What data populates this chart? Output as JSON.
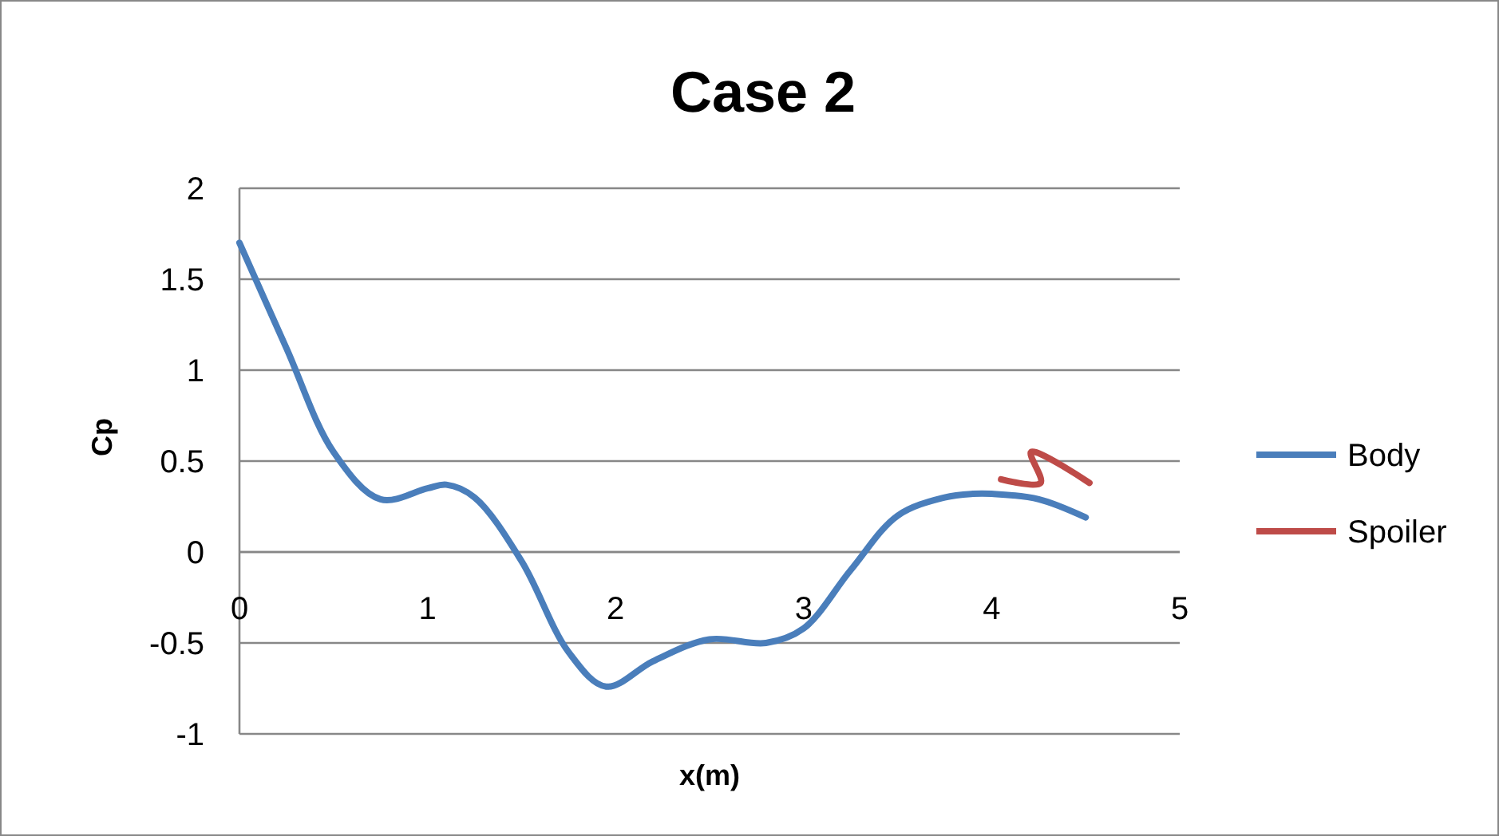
{
  "chart_data": {
    "type": "line",
    "title": "Case 2",
    "xlabel": "x(m)",
    "ylabel": "Cp",
    "xlim": [
      0,
      5
    ],
    "xticks": [
      0,
      1,
      2,
      3,
      4,
      5
    ],
    "ylim": [
      -1,
      2
    ],
    "yticks": [
      -1,
      -0.5,
      0,
      0.5,
      1,
      1.5,
      2
    ],
    "grid": "y",
    "legend": "right",
    "marker": "none",
    "line_style": "solid",
    "series": [
      {
        "name": "Body",
        "color": "#4a7ebb",
        "x": [
          0,
          0.25,
          0.5,
          0.75,
          1.0,
          1.1,
          1.25,
          1.5,
          1.75,
          1.95,
          2.2,
          2.5,
          2.8,
          3.0,
          3.25,
          3.5,
          3.75,
          3.9,
          4.0,
          4.25,
          4.5
        ],
        "values": [
          1.7,
          1.12,
          0.55,
          0.29,
          0.35,
          0.37,
          0.3,
          -0.05,
          -0.55,
          -0.74,
          -0.6,
          -0.48,
          -0.5,
          -0.42,
          -0.1,
          0.2,
          0.3,
          0.32,
          0.32,
          0.29,
          0.19
        ]
      },
      {
        "name": "Spoiler",
        "color": "#be4b48",
        "x": [
          4.05,
          4.26,
          4.21,
          4.52
        ],
        "values": [
          0.4,
          0.38,
          0.55,
          0.38
        ]
      }
    ]
  }
}
